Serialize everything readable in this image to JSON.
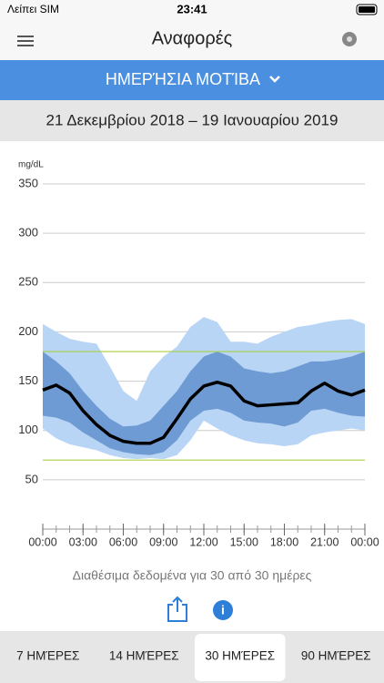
{
  "status_bar": {
    "carrier": "Λείπει SIM",
    "time": "23:41"
  },
  "header": {
    "title": "Αναφορές"
  },
  "view_selector": {
    "label": "ΗΜΕΡΉΣΙΑ ΜΟΤΊΒΑ"
  },
  "date_range": "21 Δεκεμβρίου 2018 – 19 Ιανουαρίου 2019",
  "chart_data": {
    "type": "agp",
    "y_label": "mg/dL",
    "x": [
      0,
      1,
      2,
      3,
      4,
      5,
      6,
      7,
      8,
      9,
      10,
      11,
      12,
      13,
      14,
      15,
      16,
      17,
      18,
      19,
      20,
      21,
      22,
      23,
      24
    ],
    "xlim": [
      0,
      24
    ],
    "xticks": [
      {
        "value": 0,
        "label": "00:00"
      },
      {
        "value": 3,
        "label": "03:00"
      },
      {
        "value": 6,
        "label": "06:00"
      },
      {
        "value": 9,
        "label": "09:00"
      },
      {
        "value": 12,
        "label": "12:00"
      },
      {
        "value": 15,
        "label": "15:00"
      },
      {
        "value": 18,
        "label": "18:00"
      },
      {
        "value": 21,
        "label": "21:00"
      },
      {
        "value": 24,
        "label": "00:00"
      }
    ],
    "minor_xticks": [
      0,
      1,
      2,
      3,
      4,
      5,
      6,
      7,
      8,
      9,
      10,
      11,
      12,
      13,
      14,
      15,
      16,
      17,
      18,
      19,
      20,
      21,
      22,
      23,
      24
    ],
    "ylim": [
      0,
      350
    ],
    "yticks": [
      50,
      100,
      150,
      200,
      250,
      300,
      350
    ],
    "grid": true,
    "target_lines": {
      "values": [
        70,
        180
      ],
      "color": "#a8cf45"
    },
    "bands": [
      {
        "color": "#b9d5f5",
        "upper": [
          208,
          200,
          193,
          190,
          188,
          165,
          140,
          130,
          160,
          175,
          185,
          205,
          215,
          210,
          190,
          190,
          188,
          195,
          200,
          205,
          207,
          210,
          212,
          213,
          208
        ],
        "lower": [
          102,
          92,
          86,
          83,
          80,
          75,
          72,
          71,
          72,
          71,
          75,
          90,
          110,
          102,
          95,
          90,
          87,
          86,
          84,
          86,
          95,
          98,
          100,
          102,
          100
        ]
      },
      {
        "color": "#6f9bd4",
        "upper": [
          180,
          170,
          158,
          140,
          125,
          112,
          104,
          105,
          110,
          125,
          140,
          160,
          175,
          180,
          175,
          163,
          160,
          158,
          160,
          165,
          170,
          170,
          172,
          175,
          180
        ],
        "lower": [
          115,
          113,
          108,
          98,
          90,
          82,
          78,
          76,
          75,
          78,
          90,
          110,
          120,
          122,
          118,
          110,
          108,
          107,
          104,
          108,
          120,
          122,
          118,
          115,
          114
        ]
      }
    ],
    "median": {
      "color": "#000000",
      "values": [
        141,
        146,
        138,
        120,
        106,
        95,
        89,
        87,
        87,
        93,
        112,
        132,
        145,
        149,
        145,
        130,
        125,
        126,
        127,
        128,
        140,
        148,
        140,
        136,
        141
      ]
    }
  },
  "availability": "Διαθέσιμα δεδομένα για 30 από 30 ημέρες",
  "tabs": [
    "7 ΗΜΈΡΕΣ",
    "14 ΗΜΈΡΕΣ",
    "30 ΗΜΈΡΕΣ",
    "90 ΗΜΈΡΕΣ"
  ],
  "selected_tab": 2
}
